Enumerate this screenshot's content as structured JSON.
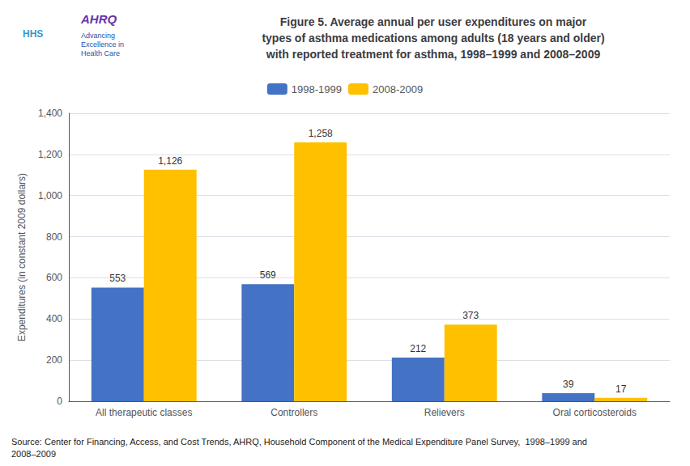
{
  "chart_data": {
    "type": "bar",
    "title": "Figure 5. Average annual per user expenditures on major\ntypes of asthma medications among adults (18 years and older)\nwith reported treatment for asthma, 1998–1999 and 2008–2009",
    "categories": [
      "All therapeutic classes",
      "Controllers",
      "Relievers",
      "Oral corticosteroids"
    ],
    "series": [
      {
        "name": "1998-1999",
        "color": "#4472C4",
        "values": [
          553,
          569,
          212,
          39
        ],
        "value_labels": [
          "553",
          "569",
          "212",
          "39"
        ]
      },
      {
        "name": "2008-2009",
        "color": "#FFC000",
        "values": [
          1126,
          1258,
          373,
          17
        ],
        "value_labels": [
          "1,126",
          "1,258",
          "373",
          "17"
        ]
      }
    ],
    "ylabel": "Expenditures (in constant 2009 dollars)",
    "ylim": [
      0,
      1400
    ],
    "yticks": [
      0,
      200,
      400,
      600,
      800,
      {
        "value": 1000,
        "label": "1,000"
      },
      {
        "value": 1200,
        "label": "1,200"
      },
      {
        "value": 1400,
        "label": "1,400"
      }
    ],
    "grid": true,
    "legend": "top",
    "data_labels": true,
    "annotations": [
      "Source: Center for Financing, Access, and Cost Trends, AHRQ, Household Component of the Medical Expenditure Panel Survey,  1998–1999 and\n2008–2009",
      "HHS",
      "AHRQ",
      "Advancing\nExcellence in\nHealth Care"
    ]
  }
}
